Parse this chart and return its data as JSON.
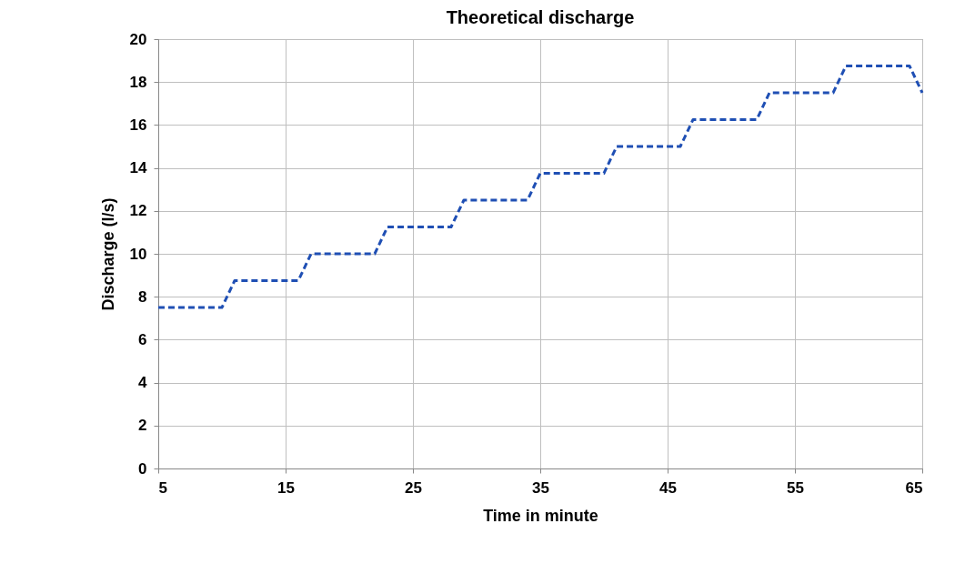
{
  "chart_data": {
    "type": "line",
    "title": "Theoretical discharge",
    "xlabel": "Time in minute",
    "ylabel": "Discharge (l/s)",
    "x": [
      5,
      10,
      11,
      16,
      17,
      22,
      23,
      28,
      29,
      34,
      35,
      40,
      41,
      46,
      47,
      52,
      53,
      58,
      59,
      64,
      65
    ],
    "series": [
      {
        "color": "#1f4fb4",
        "values": [
          7.5,
          7.5,
          8.75,
          8.75,
          10,
          10,
          11.25,
          11.25,
          12.5,
          12.5,
          13.75,
          13.75,
          15,
          15,
          16.25,
          16.25,
          17.5,
          17.5,
          18.75,
          18.75,
          17.5
        ]
      }
    ],
    "xlim": [
      5,
      65
    ],
    "xticks": [
      5,
      15,
      25,
      35,
      45,
      55,
      65
    ],
    "ylim": [
      0,
      20
    ],
    "yticks": [
      0,
      2,
      4,
      6,
      8,
      10,
      12,
      14,
      16,
      18,
      20
    ],
    "grid": true,
    "line_style": "dashed",
    "marker": "none"
  }
}
